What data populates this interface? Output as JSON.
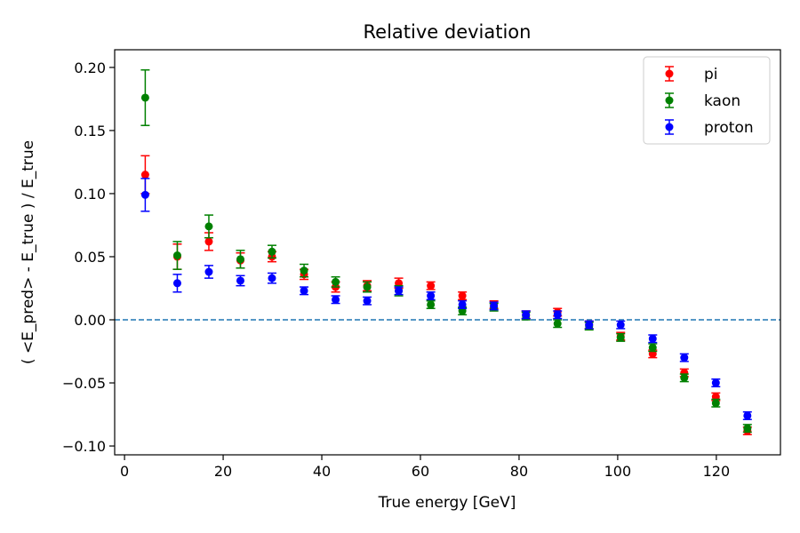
{
  "chart_data": {
    "type": "scatter",
    "title": "Relative deviation",
    "xlabel": "True energy [GeV]",
    "ylabel": "( <E_pred> - E_true ) / E_true",
    "xlim": [
      -2,
      133
    ],
    "ylim": [
      -0.107,
      0.214
    ],
    "xticks": [
      0,
      20,
      40,
      60,
      80,
      100,
      120
    ],
    "xtick_labels": [
      "0",
      "20",
      "40",
      "60",
      "80",
      "100",
      "120"
    ],
    "yticks": [
      -0.1,
      -0.05,
      0.0,
      0.05,
      0.1,
      0.15,
      0.2
    ],
    "ytick_labels": [
      "−0.10",
      "−0.05",
      "0.00",
      "0.05",
      "0.10",
      "0.15",
      "0.20"
    ],
    "grid": false,
    "legend_position": "top-right",
    "reference_line": {
      "y": 0.0,
      "style": "dashed",
      "color": "#1f77b4"
    },
    "x": [
      4.2,
      10.7,
      17.1,
      23.5,
      29.9,
      36.4,
      42.8,
      49.2,
      55.6,
      62.1,
      68.5,
      74.9,
      81.4,
      87.8,
      94.2,
      100.6,
      107.1,
      113.5,
      119.9,
      126.3
    ],
    "series": [
      {
        "name": "pi",
        "color": "#ff0000",
        "values": [
          0.115,
          0.05,
          0.062,
          0.047,
          0.05,
          0.036,
          0.026,
          0.027,
          0.029,
          0.027,
          0.019,
          0.012,
          0.004,
          0.006,
          -0.004,
          -0.013,
          -0.027,
          -0.042,
          -0.061,
          -0.088
        ],
        "errors": [
          0.015,
          0.01,
          0.007,
          0.006,
          0.004,
          0.004,
          0.004,
          0.004,
          0.004,
          0.003,
          0.003,
          0.003,
          0.003,
          0.003,
          0.003,
          0.003,
          0.003,
          0.003,
          0.003,
          0.003
        ]
      },
      {
        "name": "kaon",
        "color": "#008000",
        "values": [
          0.176,
          0.051,
          0.074,
          0.048,
          0.054,
          0.039,
          0.03,
          0.026,
          0.023,
          0.012,
          0.007,
          0.01,
          0.003,
          -0.003,
          -0.005,
          -0.014,
          -0.022,
          -0.046,
          -0.066,
          -0.086
        ],
        "errors": [
          0.022,
          0.011,
          0.009,
          0.007,
          0.005,
          0.005,
          0.004,
          0.004,
          0.004,
          0.003,
          0.003,
          0.003,
          0.003,
          0.003,
          0.003,
          0.003,
          0.003,
          0.003,
          0.003,
          0.003
        ]
      },
      {
        "name": "proton",
        "color": "#0000ff",
        "values": [
          0.099,
          0.029,
          0.038,
          0.031,
          0.033,
          0.023,
          0.016,
          0.015,
          0.023,
          0.019,
          0.012,
          0.011,
          0.004,
          0.004,
          -0.004,
          -0.004,
          -0.015,
          -0.03,
          -0.05,
          -0.076
        ],
        "errors": [
          0.013,
          0.007,
          0.005,
          0.004,
          0.004,
          0.003,
          0.003,
          0.003,
          0.003,
          0.003,
          0.003,
          0.003,
          0.003,
          0.003,
          0.003,
          0.003,
          0.003,
          0.003,
          0.003,
          0.003
        ]
      }
    ]
  }
}
